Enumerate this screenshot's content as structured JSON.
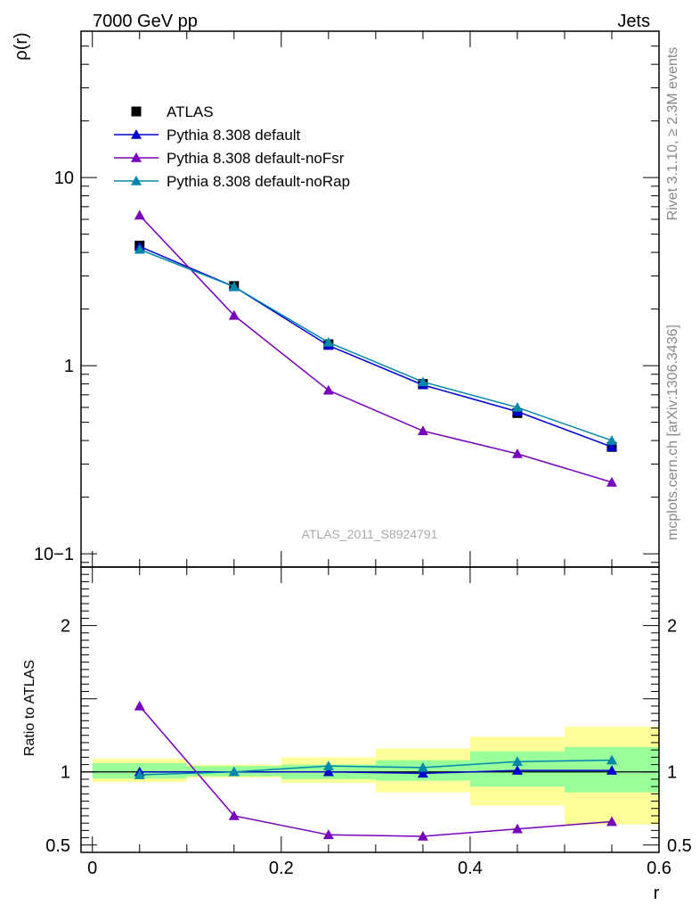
{
  "header": {
    "left": "7000 GeV pp",
    "right": "Jets"
  },
  "side_labels": {
    "rivet": "Rivet 3.1.10, ≥ 2.3M events",
    "source": "mcplots.cern.ch [arXiv:1306.3436]"
  },
  "chart_data": [
    {
      "type": "line",
      "panel": "main",
      "ylabel": "ρ(r)",
      "xlabel": "r",
      "yscale": "log",
      "ylim": [
        0.085,
        60
      ],
      "xlim": [
        -0.012,
        0.6
      ],
      "yticks": [
        {
          "value": 10,
          "label": "10"
        },
        {
          "value": 1,
          "label": "1"
        },
        {
          "value": 0.1,
          "label": "10−1"
        }
      ],
      "watermark": "ATLAS_2011_S8924791",
      "legend_position": "top-left",
      "x": [
        0.05,
        0.15,
        0.25,
        0.35,
        0.45,
        0.55
      ],
      "series": [
        {
          "name": "ATLAS",
          "marker": "square",
          "color": "#000000",
          "values": [
            4.35,
            2.65,
            1.3,
            0.8,
            0.56,
            0.37
          ]
        },
        {
          "name": "Pythia 8.308 default",
          "marker": "triangle",
          "color": "#0000cc",
          "values": [
            4.3,
            2.63,
            1.28,
            0.79,
            0.57,
            0.37
          ]
        },
        {
          "name": "Pythia 8.308 default-noFsr",
          "marker": "triangle",
          "color": "#7700bb",
          "values": [
            6.3,
            1.85,
            0.74,
            0.45,
            0.34,
            0.24
          ]
        },
        {
          "name": "Pythia 8.308 default-noRap",
          "marker": "triangle",
          "color": "#0088aa",
          "values": [
            4.15,
            2.63,
            1.33,
            0.82,
            0.6,
            0.4
          ]
        }
      ]
    },
    {
      "type": "line",
      "panel": "ratio",
      "ylabel": "Ratio to ATLAS",
      "xlabel": "r",
      "ylim": [
        0.45,
        2.4
      ],
      "xlim": [
        -0.012,
        0.6
      ],
      "xticks": [
        {
          "value": 0,
          "label": "0"
        },
        {
          "value": 0.2,
          "label": "0.2"
        },
        {
          "value": 0.4,
          "label": "0.4"
        },
        {
          "value": 0.6,
          "label": "0.6"
        }
      ],
      "yticks": [
        {
          "value": 2,
          "label": "2"
        },
        {
          "value": 1,
          "label": "1"
        },
        {
          "value": 0.5,
          "label": "0.5"
        }
      ],
      "bands": [
        {
          "x0": 0.0,
          "x1": 0.1,
          "inner": [
            0.955,
            1.06
          ],
          "outer": [
            0.93,
            1.09
          ]
        },
        {
          "x0": 0.1,
          "x1": 0.2,
          "inner": [
            0.97,
            1.04
          ],
          "outer": [
            0.96,
            1.05
          ]
        },
        {
          "x0": 0.2,
          "x1": 0.3,
          "inner": [
            0.95,
            1.05
          ],
          "outer": [
            0.925,
            1.1
          ]
        },
        {
          "x0": 0.3,
          "x1": 0.4,
          "inner": [
            0.94,
            1.08
          ],
          "outer": [
            0.86,
            1.16
          ]
        },
        {
          "x0": 0.4,
          "x1": 0.5,
          "inner": [
            0.9,
            1.14
          ],
          "outer": [
            0.77,
            1.24
          ]
        },
        {
          "x0": 0.5,
          "x1": 0.6,
          "inner": [
            0.86,
            1.17
          ],
          "outer": [
            0.64,
            1.31
          ]
        }
      ],
      "x": [
        0.05,
        0.15,
        0.25,
        0.35,
        0.45,
        0.55
      ],
      "series": [
        {
          "name": "Pythia 8.308 default",
          "marker": "triangle",
          "color": "#0000cc",
          "values": [
            1.0,
            1.0,
            1.0,
            0.99,
            1.01,
            1.01
          ]
        },
        {
          "name": "Pythia 8.308 default-noFsr",
          "marker": "triangle",
          "color": "#7700bb",
          "values": [
            1.45,
            0.7,
            0.57,
            0.56,
            0.61,
            0.66
          ]
        },
        {
          "name": "Pythia 8.308 default-noRap",
          "marker": "triangle",
          "color": "#0088aa",
          "values": [
            0.98,
            1.0,
            1.04,
            1.03,
            1.07,
            1.08
          ]
        }
      ]
    }
  ]
}
